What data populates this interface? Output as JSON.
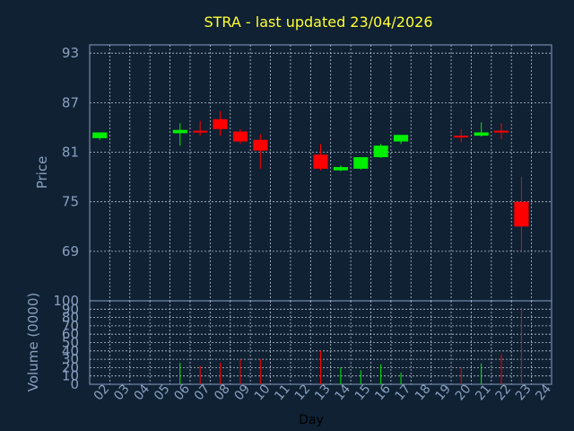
{
  "chart_data": {
    "type": "candlestick",
    "title": "STRA - last updated 23/04/2026",
    "xlabel": "Day",
    "price_ylabel": "Price",
    "volume_ylabel": "Volume (0000)",
    "price_yticks": [
      69,
      75,
      81,
      87,
      93
    ],
    "price_ylim": [
      63,
      94
    ],
    "volume_yticks": [
      0,
      10,
      20,
      30,
      40,
      50,
      60,
      70,
      80,
      90,
      100
    ],
    "volume_ylim": [
      0,
      100
    ],
    "x_ticks": [
      "02",
      "03",
      "04",
      "05",
      "06",
      "07",
      "08",
      "09",
      "10",
      "11",
      "12",
      "13",
      "14",
      "15",
      "16",
      "17",
      "18",
      "19",
      "20",
      "21",
      "22",
      "23",
      "24"
    ],
    "grid": true,
    "colors": {
      "up": "#00ee00",
      "down": "#ff0000",
      "background": "#0f2133",
      "title": "#ffff33"
    },
    "candles": [
      {
        "day": "02",
        "open": 82.7,
        "high": 83.4,
        "low": 82.5,
        "close": 83.4,
        "volume": 0
      },
      {
        "day": "06",
        "open": 83.3,
        "high": 84.5,
        "low": 81.8,
        "close": 83.7,
        "volume": 26
      },
      {
        "day": "07",
        "open": 83.6,
        "high": 84.8,
        "low": 83.0,
        "close": 83.4,
        "volume": 22
      },
      {
        "day": "08",
        "open": 85.0,
        "high": 86.0,
        "low": 83.0,
        "close": 83.8,
        "volume": 26
      },
      {
        "day": "09",
        "open": 83.5,
        "high": 83.8,
        "low": 82.0,
        "close": 82.3,
        "volume": 30
      },
      {
        "day": "10",
        "open": 82.5,
        "high": 83.2,
        "low": 79.0,
        "close": 81.2,
        "volume": 30
      },
      {
        "day": "13",
        "open": 80.7,
        "high": 82.0,
        "low": 78.8,
        "close": 79.0,
        "volume": 40
      },
      {
        "day": "14",
        "open": 78.8,
        "high": 79.4,
        "low": 78.7,
        "close": 79.2,
        "volume": 20
      },
      {
        "day": "15",
        "open": 79.0,
        "high": 80.4,
        "low": 78.9,
        "close": 80.4,
        "volume": 17
      },
      {
        "day": "16",
        "open": 80.4,
        "high": 82.0,
        "low": 80.3,
        "close": 81.8,
        "volume": 24
      },
      {
        "day": "17",
        "open": 82.3,
        "high": 83.1,
        "low": 82.0,
        "close": 83.1,
        "volume": 14
      },
      {
        "day": "20",
        "open": 83.0,
        "high": 83.8,
        "low": 82.2,
        "close": 82.9,
        "volume": 20
      },
      {
        "day": "21",
        "open": 83.0,
        "high": 84.6,
        "low": 82.9,
        "close": 83.4,
        "volume": 25
      },
      {
        "day": "22",
        "open": 83.6,
        "high": 84.5,
        "low": 82.6,
        "close": 83.5,
        "volume": 36
      },
      {
        "day": "23",
        "open": 75.0,
        "high": 78.0,
        "low": 69.0,
        "close": 72.0,
        "volume": 92
      }
    ]
  }
}
